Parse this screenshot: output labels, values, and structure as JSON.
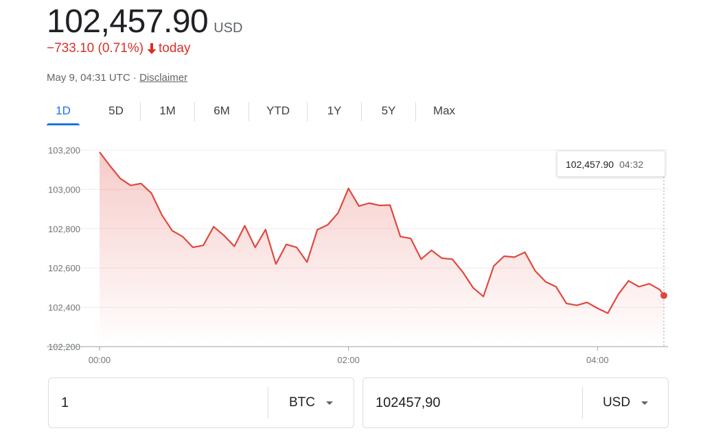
{
  "header": {
    "price": "102,457.90",
    "currency": "USD",
    "change": "−733.10 (0.71%)",
    "change_suffix": "today",
    "timestamp": "May 9, 04:31 UTC",
    "separator": "·",
    "disclaimer": "Disclaimer"
  },
  "tabs": [
    {
      "label": "1D",
      "active": true
    },
    {
      "label": "5D"
    },
    {
      "label": "1M"
    },
    {
      "label": "6M"
    },
    {
      "label": "YTD"
    },
    {
      "label": "1Y"
    },
    {
      "label": "5Y"
    },
    {
      "label": "Max"
    }
  ],
  "tooltip": {
    "value": "102,457.90",
    "time": "04:32"
  },
  "converter": {
    "left": {
      "value": "1",
      "unit": "BTC"
    },
    "right": {
      "value": "102457,90",
      "unit": "USD"
    }
  },
  "colors": {
    "line": "#e0473d",
    "negative": "#d93025",
    "accent": "#1a73e8"
  },
  "chart_data": {
    "type": "line",
    "xlim_minutes": [
      0,
      272
    ],
    "ylim": [
      102200,
      103200
    ],
    "yticks": [
      103200,
      103000,
      102800,
      102600,
      102400,
      102200
    ],
    "ytick_labels": [
      "103,200",
      "103,000",
      "102,800",
      "102,600",
      "102,400",
      "102,200"
    ],
    "xticks_minutes": [
      0,
      120,
      240
    ],
    "xtick_labels": [
      "00:00",
      "02:00",
      "04:00"
    ],
    "grid": true,
    "x_minutes": [
      0,
      5,
      10,
      15,
      20,
      25,
      30,
      35,
      40,
      45,
      50,
      55,
      60,
      65,
      70,
      75,
      80,
      85,
      90,
      95,
      100,
      105,
      110,
      115,
      120,
      125,
      130,
      135,
      140,
      145,
      150,
      155,
      160,
      165,
      170,
      175,
      180,
      185,
      190,
      195,
      200,
      205,
      210,
      215,
      220,
      225,
      230,
      235,
      240,
      245,
      250,
      255,
      260,
      265,
      270,
      272
    ],
    "values": [
      103190,
      103120,
      103055,
      103020,
      103030,
      102980,
      102870,
      102790,
      102760,
      102705,
      102715,
      102810,
      102765,
      102710,
      102815,
      102705,
      102795,
      102620,
      102720,
      102705,
      102630,
      102795,
      102820,
      102880,
      103005,
      102915,
      102930,
      102918,
      102920,
      102760,
      102750,
      102645,
      102690,
      102650,
      102645,
      102580,
      102500,
      102455,
      102610,
      102660,
      102655,
      102680,
      102585,
      102530,
      102505,
      102420,
      102410,
      102425,
      102395,
      102370,
      102465,
      102535,
      102505,
      102520,
      102490,
      102460
    ]
  }
}
